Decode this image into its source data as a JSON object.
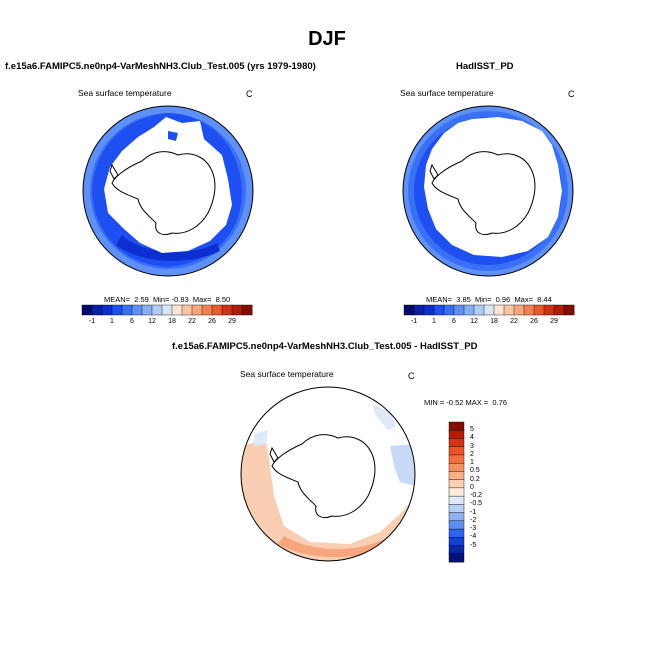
{
  "title": "DJF",
  "panels": {
    "model": {
      "title": "f.e15a6.FAMIPC5.ne0np4-VarMeshNH3.Club_Test.005 (yrs 1979-1980)",
      "var": "Sea surface temperature",
      "unit": "C",
      "stats": {
        "mean_label": "MEAN=",
        "mean": "2.59",
        "min_label": "Min=",
        "min": "-0.83",
        "max_label": "Max=",
        "max": "8.50"
      }
    },
    "obs": {
      "title": "HadISST_PD",
      "var": "Sea surface temperature",
      "unit": "C",
      "stats": {
        "mean_label": "MEAN=",
        "mean": "3.85",
        "min_label": "Min=",
        "min": "0.96",
        "max_label": "Max=",
        "max": "8.44"
      }
    },
    "diff": {
      "title": "f.e15a6.FAMIPC5.ne0np4-VarMeshNH3.Club_Test.005 - HadISST_PD",
      "var": "Sea surface temperature",
      "unit": "C",
      "stats": {
        "min_label": "MIN =",
        "min": "-0.52",
        "max_label": "MAX =",
        "max": "0.76"
      }
    }
  },
  "chart_data": [
    {
      "type": "heatmap",
      "title": "f.e15a6.FAMIPC5.ne0np4-VarMeshNH3.Club_Test.005 (yrs 1979-1980)",
      "projection": "south-polar stereographic",
      "colorbar": {
        "orientation": "horizontal",
        "tick_labels": [
          "-1",
          "1",
          "6",
          "12",
          "18",
          "22",
          "26",
          "29"
        ],
        "colors": [
          "#08086b",
          "#0a1fa8",
          "#0d2fd1",
          "#1e4ff0",
          "#3a70f5",
          "#5f90f5",
          "#87aef4",
          "#b0cbf5",
          "#d8e6f8",
          "#fbe6d6",
          "#f9c6a5",
          "#f7a57c",
          "#f3814f",
          "#ea5a2c",
          "#d13214",
          "#b01c06",
          "#800e00"
        ]
      },
      "stats": {
        "mean": 2.59,
        "min": -0.83,
        "max": 8.5
      }
    },
    {
      "type": "heatmap",
      "title": "HadISST_PD",
      "projection": "south-polar stereographic",
      "colorbar": {
        "orientation": "horizontal",
        "tick_labels": [
          "-1",
          "1",
          "6",
          "12",
          "18",
          "22",
          "26",
          "29"
        ],
        "colors": [
          "#08086b",
          "#0a1fa8",
          "#0d2fd1",
          "#1e4ff0",
          "#3a70f5",
          "#5f90f5",
          "#87aef4",
          "#b0cbf5",
          "#d8e6f8",
          "#fbe6d6",
          "#f9c6a5",
          "#f7a57c",
          "#f3814f",
          "#ea5a2c",
          "#d13214",
          "#b01c06",
          "#800e00"
        ]
      },
      "stats": {
        "mean": 3.85,
        "min": 0.96,
        "max": 8.44
      }
    },
    {
      "type": "heatmap",
      "title": "f.e15a6.FAMIPC5.ne0np4-VarMeshNH3.Club_Test.005 - HadISST_PD",
      "projection": "south-polar stereographic",
      "colorbar": {
        "orientation": "vertical",
        "tick_labels": [
          "5",
          "4",
          "3",
          "2",
          "1",
          "0.5",
          "0.2",
          "0",
          "-0.2",
          "-0.5",
          "-1",
          "-2",
          "-3",
          "-4",
          "-5"
        ],
        "colors": [
          "#7f0f00",
          "#b21d05",
          "#d53216",
          "#ed5229",
          "#f6703f",
          "#f8905f",
          "#f9b189",
          "#fbd2b4",
          "#fdecdc",
          "#dfe9f7",
          "#b9d0f4",
          "#8fb2f2",
          "#5f8ef0",
          "#2f64ec",
          "#1140d6",
          "#0a25a6",
          "#07107a"
        ]
      },
      "stats": {
        "min": -0.52,
        "max": 0.76
      }
    }
  ]
}
